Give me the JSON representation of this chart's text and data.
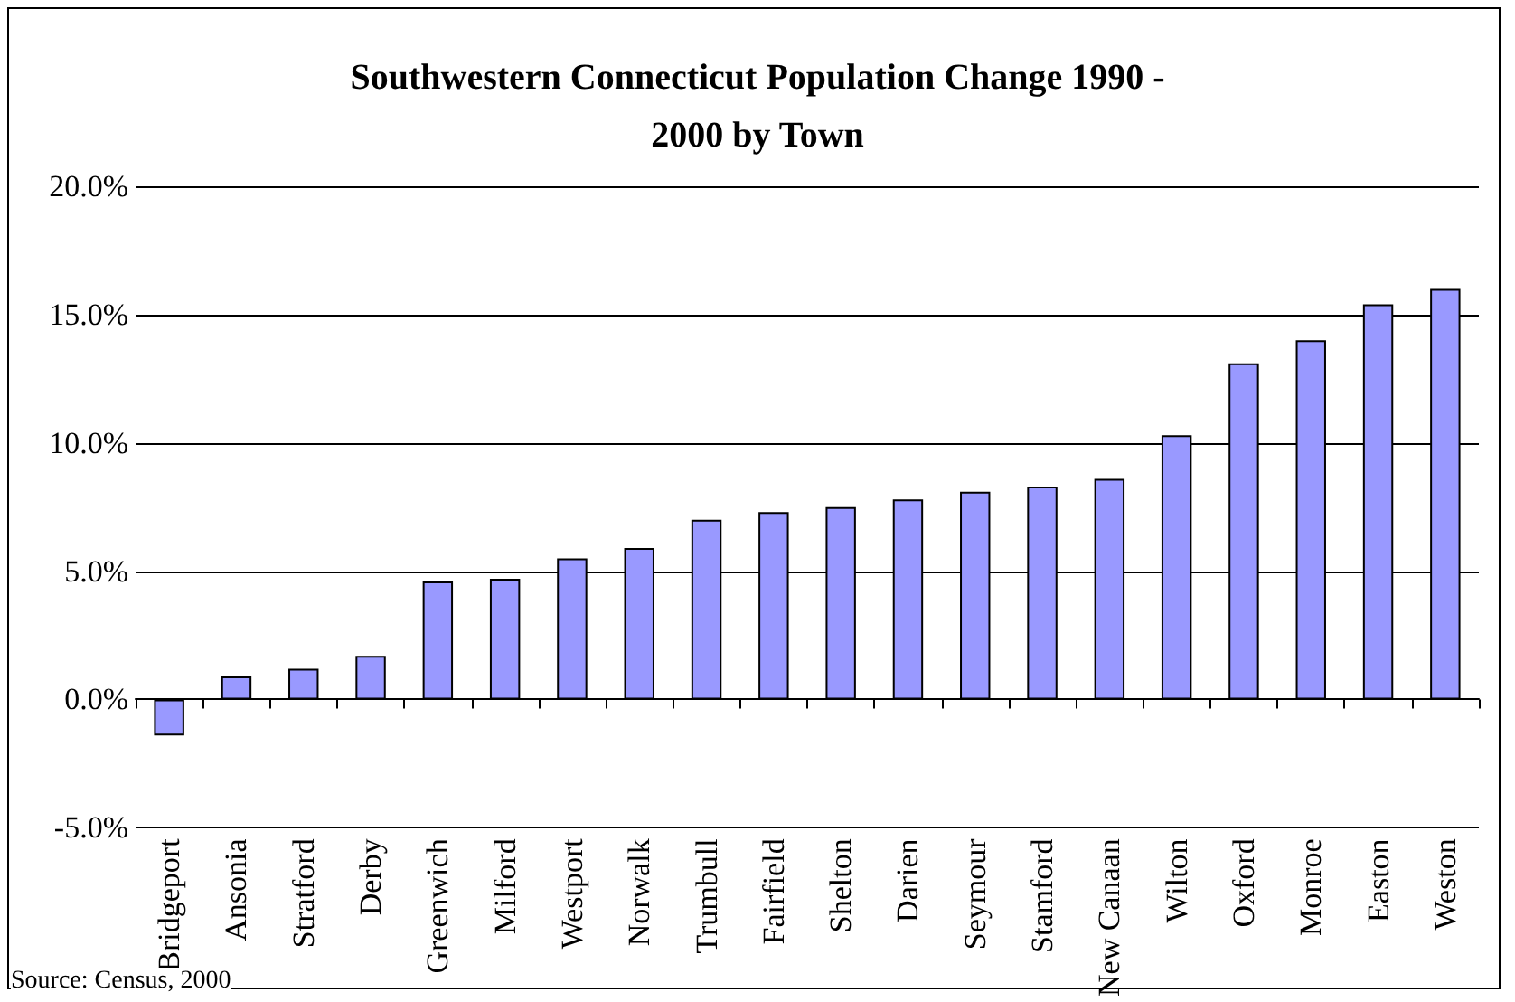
{
  "chart_data": {
    "type": "bar",
    "title": "Southwestern Connecticut Population Change 1990 -\n2000 by Town",
    "categories": [
      "Bridgeport",
      "Ansonia",
      "Stratford",
      "Derby",
      "Greenwich",
      "Milford",
      "Westport",
      "Norwalk",
      "Trumbull",
      "Fairfield",
      "Shelton",
      "Darien",
      "Seymour",
      "Stamford",
      "New Canaan",
      "Wilton",
      "Oxford",
      "Monroe",
      "Easton",
      "Weston"
    ],
    "values": [
      -1.4,
      0.9,
      1.2,
      1.7,
      4.6,
      4.7,
      5.5,
      5.9,
      7.0,
      7.3,
      7.5,
      7.8,
      8.1,
      8.3,
      8.6,
      10.3,
      13.1,
      14.0,
      15.4,
      16.0
    ],
    "color": "#9999ff",
    "ylim": [
      -5,
      20
    ],
    "yticks": [
      {
        "value": -5,
        "label": "-5.0%"
      },
      {
        "value": 0,
        "label": "0.0%"
      },
      {
        "value": 5,
        "label": "5.0%"
      },
      {
        "value": 10,
        "label": "10.0%"
      },
      {
        "value": 15,
        "label": "15.0%"
      },
      {
        "value": 20,
        "label": "20.0%"
      }
    ],
    "grid": "y",
    "annotations": [
      "Source: Census, 2000"
    ]
  }
}
